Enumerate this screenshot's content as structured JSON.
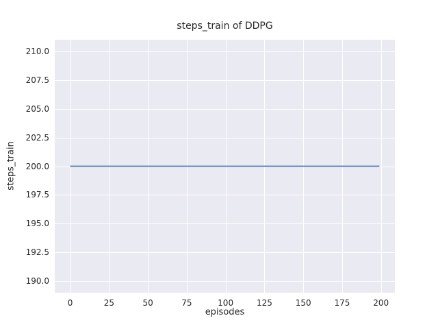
{
  "figure": {
    "background": "#ffffff"
  },
  "chart_data": {
    "type": "line",
    "title": "steps_train of DDPG",
    "xlabel": "episodes",
    "ylabel": "steps_train",
    "xlim": [
      -9.95,
      208.95
    ],
    "ylim": [
      189,
      211
    ],
    "grid": true,
    "legend": "none",
    "plot_background": "#eaeaf2",
    "grid_color": "#ffffff",
    "text_color": "#262626",
    "xticks": [
      {
        "value": 0,
        "label": "0"
      },
      {
        "value": 25,
        "label": "25"
      },
      {
        "value": 50,
        "label": "50"
      },
      {
        "value": 75,
        "label": "75"
      },
      {
        "value": 100,
        "label": "100"
      },
      {
        "value": 125,
        "label": "125"
      },
      {
        "value": 150,
        "label": "150"
      },
      {
        "value": 175,
        "label": "175"
      },
      {
        "value": 200,
        "label": "200"
      }
    ],
    "yticks": [
      {
        "value": 190.0,
        "label": "190.0"
      },
      {
        "value": 192.5,
        "label": "192.5"
      },
      {
        "value": 195.0,
        "label": "195.0"
      },
      {
        "value": 197.5,
        "label": "197.5"
      },
      {
        "value": 200.0,
        "label": "200.0"
      },
      {
        "value": 202.5,
        "label": "202.5"
      },
      {
        "value": 205.0,
        "label": "205.0"
      },
      {
        "value": 207.5,
        "label": "207.5"
      },
      {
        "value": 210.0,
        "label": "210.0"
      }
    ],
    "series": [
      {
        "name": "steps_train",
        "color": "#4c72b0",
        "x": [
          0,
          199
        ],
        "y": [
          200,
          200
        ]
      }
    ]
  }
}
